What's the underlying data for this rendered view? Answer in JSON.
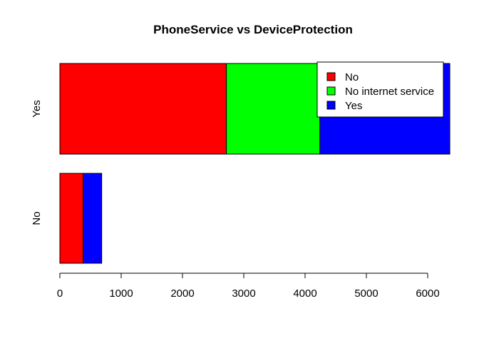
{
  "chart_data": {
    "type": "bar",
    "orientation": "horizontal",
    "stacked": true,
    "title": "PhoneService vs DeviceProtection",
    "xlabel": "",
    "ylabel": "",
    "categories": [
      "No",
      "Yes"
    ],
    "series": [
      {
        "name": "No",
        "color": "#ff0000",
        "values": [
          379,
          2716
        ]
      },
      {
        "name": "No internet service",
        "color": "#00ff00",
        "values": [
          0,
          1526
        ]
      },
      {
        "name": "Yes",
        "color": "#0000ff",
        "values": [
          303,
          2119
        ]
      }
    ],
    "xlim": [
      0,
      6000
    ],
    "xticks": [
      0,
      1000,
      2000,
      3000,
      4000,
      5000,
      6000
    ],
    "legend_position": "top-right",
    "grid": false
  }
}
